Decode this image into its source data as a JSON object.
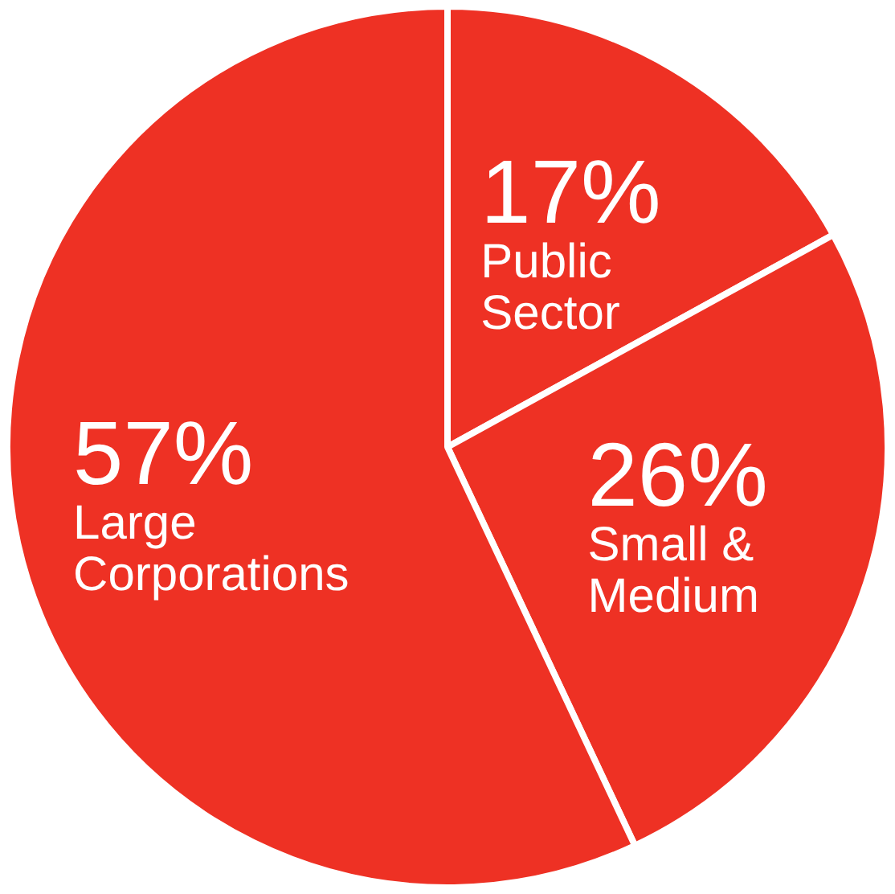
{
  "chart_data": {
    "type": "pie",
    "categories": [
      "Public Sector",
      "Small & Medium",
      "Large Corporations"
    ],
    "values": [
      17,
      26,
      57
    ],
    "value_labels": [
      "17%",
      "26%",
      "57%"
    ],
    "colors": [
      "#ee3124",
      "#ee3124",
      "#ee3124"
    ],
    "legend": false
  }
}
